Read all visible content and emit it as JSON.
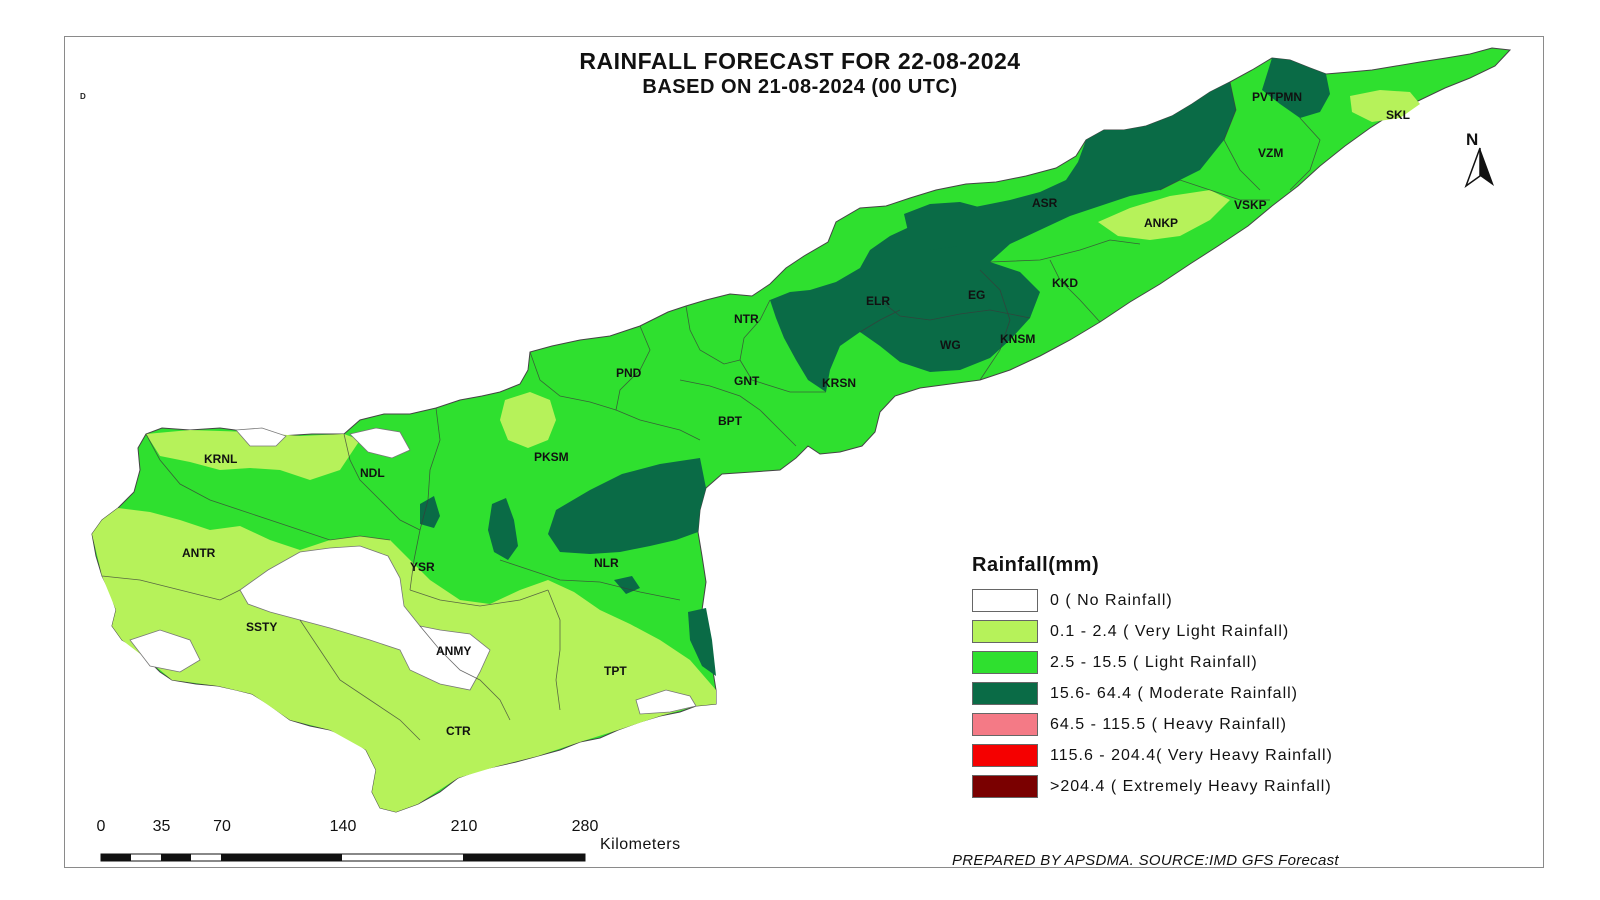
{
  "title": {
    "line1": "RAINFALL FORECAST FOR 22-08-2024",
    "line2": "BASED ON 21-08-2024 (00 UTC)"
  },
  "corner_mark": "D",
  "districts": {
    "pvtpmn": "PVTPMN",
    "skl": "SKL",
    "vzm": "VZM",
    "asr": "ASR",
    "vskp": "VSKP",
    "ankp": "ANKP",
    "kkd": "KKD",
    "elr": "ELR",
    "eg": "EG",
    "ntr": "NTR",
    "wg": "WG",
    "knsm": "KNSM",
    "pnd": "PND",
    "gnt": "GNT",
    "krsn": "KRSN",
    "bpt": "BPT",
    "krnl": "KRNL",
    "ndl": "NDL",
    "pksm": "PKSM",
    "antr": "ANTR",
    "ysr": "YSR",
    "nlr": "NLR",
    "ssty": "SSTY",
    "anmy": "ANMY",
    "tpt": "TPT",
    "ctr": "CTR"
  },
  "legend": {
    "title": "Rainfall(mm)",
    "items": [
      {
        "label": "0 ( No Rainfall)",
        "color": "#ffffff"
      },
      {
        "label": "0.1 - 2.4 ( Very Light Rainfall)",
        "color": "#b6f25a"
      },
      {
        "label": "2.5 - 15.5 ( Light Rainfall)",
        "color": "#2fe02f"
      },
      {
        "label": "15.6- 64.4 ( Moderate Rainfall)",
        "color": "#0a6b46"
      },
      {
        "label": "64.5 - 115.5 ( Heavy Rainfall)",
        "color": "#f47a86"
      },
      {
        "label": "115.6 - 204.4( Very Heavy Rainfall)",
        "color": "#f50000"
      },
      {
        "label": ">204.4 ( Extremely Heavy Rainfall)",
        "color": "#7a0000"
      }
    ]
  },
  "north_label": "N",
  "scale": {
    "ticks": [
      "0",
      "35",
      "70",
      "140",
      "210",
      "280"
    ],
    "unit": "Kilometers"
  },
  "credit": "PREPARED BY APSDMA. SOURCE:IMD GFS Forecast",
  "colors": {
    "no_rain": "#ffffff",
    "very_light": "#b6f25a",
    "light": "#2fe02f",
    "moderate": "#0a6b46",
    "border": "#5a5a5a"
  }
}
